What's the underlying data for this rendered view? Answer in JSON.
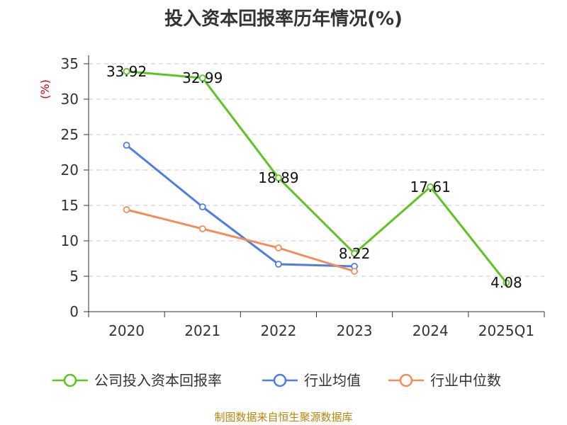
{
  "chart_data": {
    "type": "line",
    "title": "投入资本回报率历年情况(%)",
    "ylabel": "(%)",
    "xlabel": "",
    "categories": [
      "2020",
      "2021",
      "2022",
      "2023",
      "2024",
      "2025Q1"
    ],
    "ylim": [
      0,
      35
    ],
    "yticks": [
      0,
      5,
      10,
      15,
      20,
      25,
      30,
      35
    ],
    "grid": true,
    "legend_position": "bottom",
    "series": [
      {
        "name": "公司投入资本回报率",
        "color": "#5dc521",
        "values": [
          33.92,
          32.99,
          18.89,
          8.22,
          17.61,
          4.08
        ],
        "labels": [
          "33.92",
          "32.99",
          "18.89",
          "8.22",
          "17.61",
          "4.08"
        ]
      },
      {
        "name": "行业均值",
        "color": "#4f7ee0",
        "values": [
          23.5,
          14.8,
          6.7,
          6.4,
          null,
          null
        ]
      },
      {
        "name": "行业中位数",
        "color": "#f48b5b",
        "values": [
          14.4,
          11.7,
          9.0,
          5.7,
          null,
          null
        ]
      }
    ]
  },
  "source": "制图数据来自恒生聚源数据库"
}
